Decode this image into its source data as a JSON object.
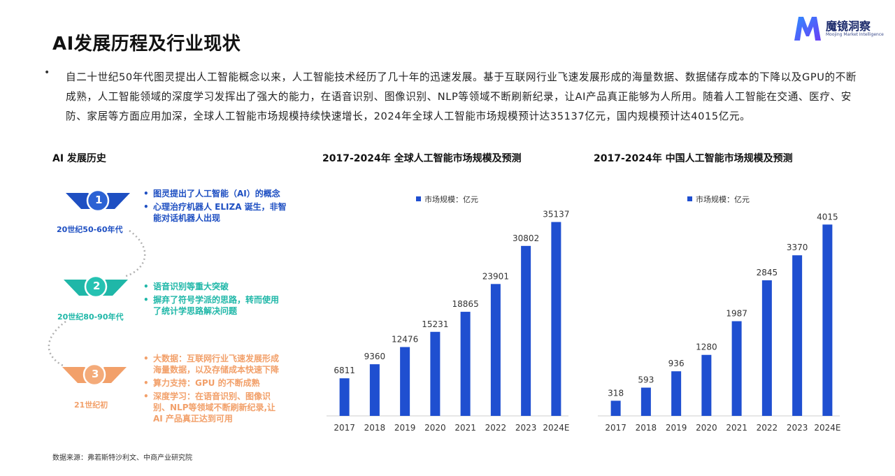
{
  "page": {
    "title": "AI发展历程及行业现状",
    "intro": "自二十世纪50年代图灵提出人工智能概念以来，人工智能技术经历了几十年的迅速发展。基于互联网行业飞速发展形成的海量数据、数据储存成本的下降以及GPU的不断成熟，人工智能领域的深度学习发挥出了强大的能力，在语音识别、图像识别、NLP等领域不断刷新纪录，让AI产品真正能够为人所用。随着人工智能在交通、医疗、安防、家居等方面应用加深，全球人工智能市场规模持续快速增长，2024年全球人工智能市场规模预计达35137亿元，国内规模预计达4015亿元。",
    "bullet": "•",
    "source": "数据来源：弗若斯特沙利文、中商产业研究院"
  },
  "logo": {
    "name": "魔镜洞察",
    "subtitle": "Moojing Market Intelligence",
    "colors": [
      "#2f6bff",
      "#6a3df5"
    ]
  },
  "history": {
    "title": "AI 发展历史",
    "stages": [
      {
        "number": "1",
        "era": "20世纪50-60年代",
        "color": "#1e4fc2",
        "items": [
          "图灵提出了人工智能（AI）的概念",
          "心理治疗机器人 ELIZA 诞生，非智能对话机器人出现"
        ]
      },
      {
        "number": "2",
        "era": "20世纪80-90年代",
        "color": "#1fb7a8",
        "items": [
          "语音识别等重大突破",
          "摒弃了符号学派的思路，转而使用了统计学思路解决问题"
        ]
      },
      {
        "number": "3",
        "era": "21世纪初",
        "color": "#f2a06a",
        "items": [
          "大数据：互联网行业飞速发展形成海量数据，以及存储成本快速下降",
          "算力支持：GPU 的不断成熟",
          "深度学习：在语音识别、图像识别、NLP等领域不断刷新纪录,让 AI 产品真正达到可用"
        ]
      }
    ]
  },
  "chart_data": [
    {
      "type": "bar",
      "title": "2017-2024年 全球人工智能市场规模及预测",
      "categories": [
        "2017",
        "2018",
        "2019",
        "2020",
        "2021",
        "2022",
        "2023",
        "2024E"
      ],
      "series": [
        {
          "name": "市场规模：亿元",
          "values": [
            6811,
            9360,
            12476,
            15231,
            18865,
            23901,
            30802,
            35137
          ]
        }
      ],
      "ylim": [
        0,
        38000
      ],
      "color": "#1f4fd0",
      "legend": "top-left",
      "grid": false
    },
    {
      "type": "bar",
      "title": "2017-2024年 中国人工智能市场规模及预测",
      "categories": [
        "2017",
        "2018",
        "2019",
        "2020",
        "2021",
        "2022",
        "2023",
        "2024E"
      ],
      "series": [
        {
          "name": "市场规模：亿元",
          "values": [
            318,
            593,
            936,
            1280,
            1987,
            2845,
            3370,
            4015
          ]
        }
      ],
      "ylim": [
        0,
        4400
      ],
      "color": "#1f4fd0",
      "legend": "top-left",
      "grid": false
    }
  ]
}
